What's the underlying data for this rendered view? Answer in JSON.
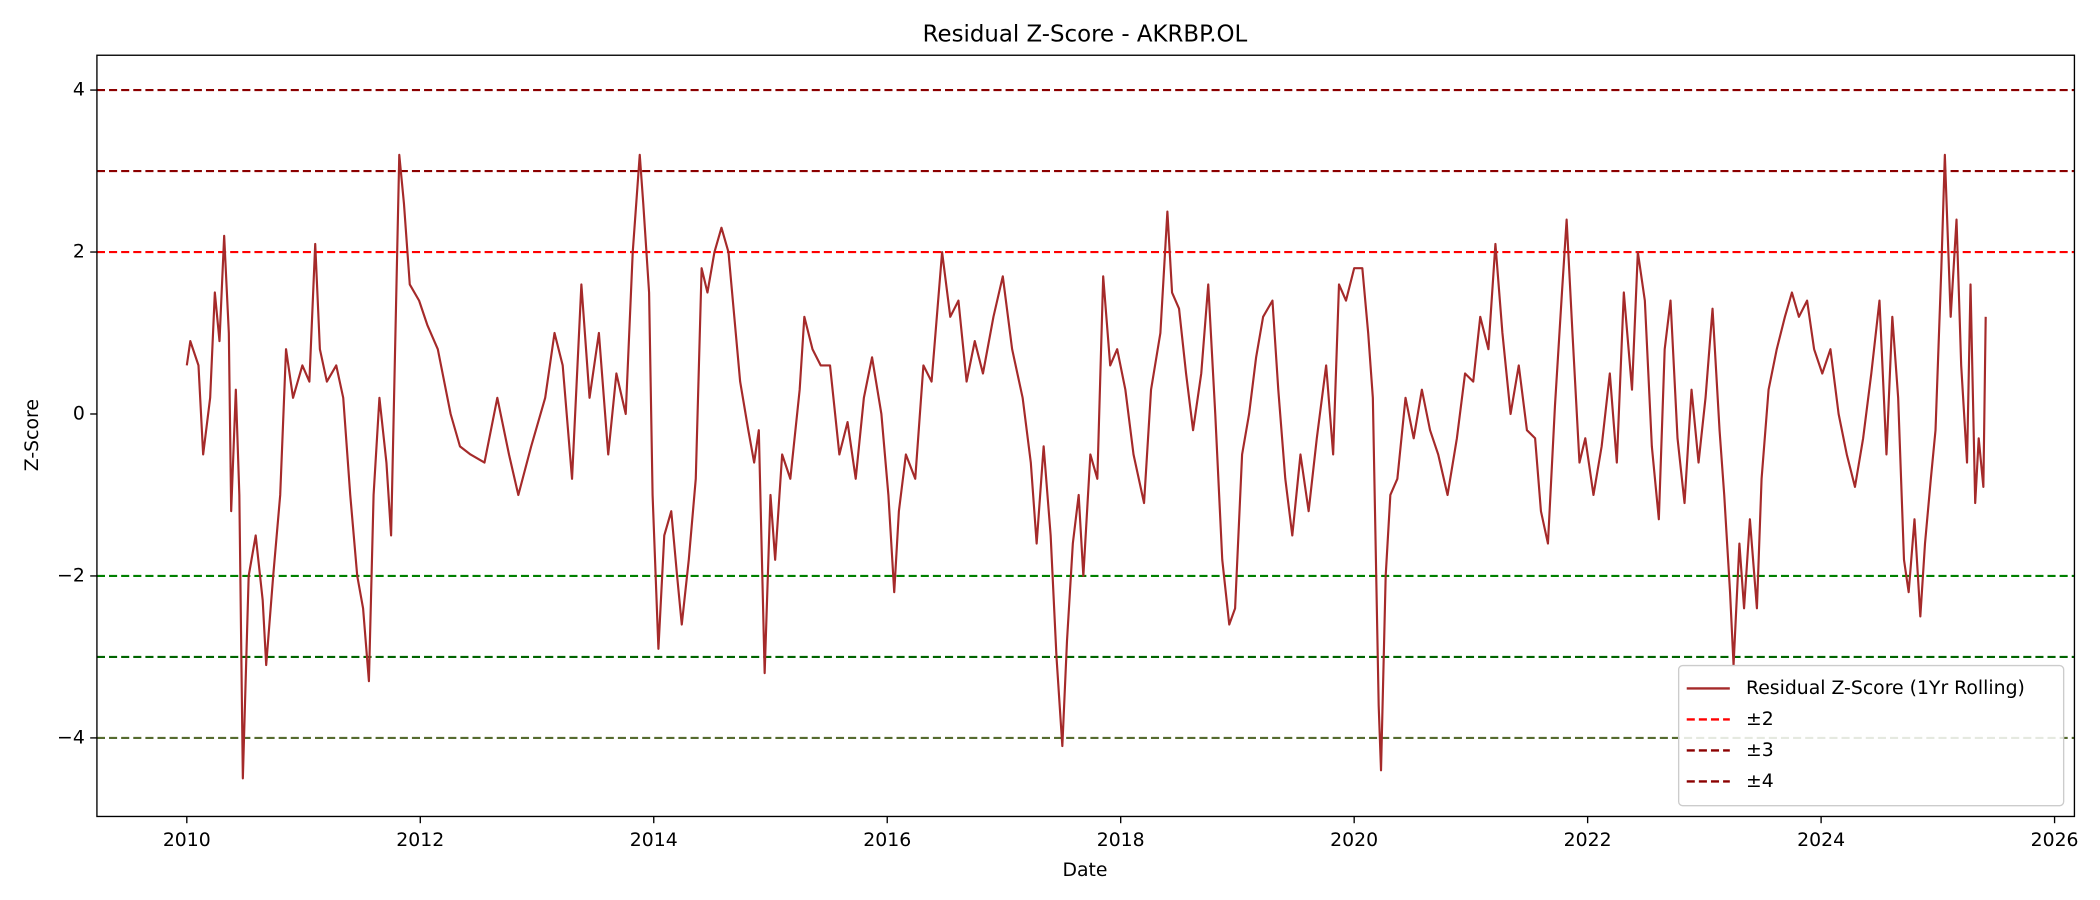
{
  "chart_data": {
    "type": "line",
    "title": "Residual Z-Score - AKRBP.OL",
    "x_label": "Date",
    "y_label": "Z-Score",
    "xlim": [
      2009.23,
      2026.17
    ],
    "xticks": [
      2010,
      2012,
      2014,
      2016,
      2018,
      2020,
      2022,
      2024,
      2026
    ],
    "ylim": [
      -4.97,
      4.43
    ],
    "yticks": [
      {
        "value": -4,
        "label": "−4"
      },
      {
        "value": -2,
        "label": "−2"
      },
      0,
      2,
      4
    ],
    "legend": "lower right",
    "grid": false,
    "x": [
      2010.0,
      2010.03,
      2010.1,
      2010.14,
      2010.2,
      2010.24,
      2010.28,
      2010.32,
      2010.36,
      2010.38,
      2010.42,
      2010.45,
      2010.48,
      2010.53,
      2010.59,
      2010.65,
      2010.68,
      2010.74,
      2010.8,
      2010.85,
      2010.91,
      2010.99,
      2011.05,
      2011.1,
      2011.14,
      2011.2,
      2011.28,
      2011.34,
      2011.4,
      2011.46,
      2011.51,
      2011.56,
      2011.6,
      2011.65,
      2011.71,
      2011.75,
      2011.82,
      2011.86,
      2011.91,
      2011.99,
      2012.06,
      2012.15,
      2012.26,
      2012.34,
      2012.43,
      2012.55,
      2012.66,
      2012.76,
      2012.84,
      2012.95,
      2013.07,
      2013.15,
      2013.22,
      2013.3,
      2013.38,
      2013.45,
      2013.53,
      2013.61,
      2013.68,
      2013.76,
      2013.82,
      2013.88,
      2013.91,
      2013.96,
      2013.99,
      2014.04,
      2014.09,
      2014.15,
      2014.2,
      2014.24,
      2014.3,
      2014.36,
      2014.41,
      2014.46,
      2014.52,
      2014.58,
      2014.64,
      2014.69,
      2014.74,
      2014.81,
      2014.86,
      2014.9,
      2014.95,
      2015.0,
      2015.04,
      2015.1,
      2015.17,
      2015.25,
      2015.29,
      2015.36,
      2015.43,
      2015.51,
      2015.59,
      2015.66,
      2015.73,
      2015.8,
      2015.87,
      2015.95,
      2016.01,
      2016.06,
      2016.1,
      2016.16,
      2016.24,
      2016.31,
      2016.38,
      2016.47,
      2016.54,
      2016.61,
      2016.68,
      2016.75,
      2016.82,
      2016.91,
      2016.99,
      2017.07,
      2017.16,
      2017.23,
      2017.28,
      2017.34,
      2017.4,
      2017.45,
      2017.5,
      2017.54,
      2017.59,
      2017.64,
      2017.68,
      2017.74,
      2017.8,
      2017.85,
      2017.91,
      2017.97,
      2018.04,
      2018.11,
      2018.2,
      2018.26,
      2018.34,
      2018.4,
      2018.44,
      2018.5,
      2018.56,
      2018.62,
      2018.69,
      2018.75,
      2018.81,
      2018.87,
      2018.93,
      2018.98,
      2019.04,
      2019.1,
      2019.16,
      2019.22,
      2019.3,
      2019.35,
      2019.41,
      2019.47,
      2019.54,
      2019.61,
      2019.68,
      2019.76,
      2019.82,
      2019.87,
      2019.93,
      2020.0,
      2020.07,
      2020.12,
      2020.16,
      2020.21,
      2020.23,
      2020.27,
      2020.31,
      2020.37,
      2020.44,
      2020.51,
      2020.58,
      2020.65,
      2020.72,
      2020.8,
      2020.88,
      2020.95,
      2021.02,
      2021.08,
      2021.15,
      2021.21,
      2021.27,
      2021.34,
      2021.41,
      2021.48,
      2021.55,
      2021.6,
      2021.66,
      2021.72,
      2021.78,
      2021.82,
      2021.87,
      2021.93,
      2021.98,
      2022.05,
      2022.12,
      2022.19,
      2022.25,
      2022.31,
      2022.38,
      2022.43,
      2022.49,
      2022.55,
      2022.61,
      2022.66,
      2022.71,
      2022.77,
      2022.83,
      2022.89,
      2022.95,
      2023.01,
      2023.07,
      2023.13,
      2023.17,
      2023.22,
      2023.25,
      2023.3,
      2023.34,
      2023.39,
      2023.45,
      2023.49,
      2023.55,
      2023.62,
      2023.69,
      2023.75,
      2023.81,
      2023.88,
      2023.94,
      2024.01,
      2024.08,
      2024.15,
      2024.22,
      2024.29,
      2024.36,
      2024.43,
      2024.5,
      2024.56,
      2024.61,
      2024.66,
      2024.71,
      2024.75,
      2024.8,
      2024.85,
      2024.89,
      2024.94,
      2024.98,
      2025.03,
      2025.06,
      2025.11,
      2025.16,
      2025.2,
      2025.25,
      2025.28,
      2025.32,
      2025.35,
      2025.39,
      2025.41
    ],
    "series": [
      {
        "name": "Residual Z-Score (1Yr Rolling)",
        "color": "#a52a2a",
        "values": [
          0.6,
          0.9,
          0.6,
          -0.5,
          0.2,
          1.5,
          0.9,
          2.2,
          1.0,
          -1.2,
          0.3,
          -1.0,
          -4.5,
          -2.0,
          -1.5,
          -2.3,
          -3.1,
          -2.0,
          -1.0,
          0.8,
          0.2,
          0.6,
          0.4,
          2.1,
          0.8,
          0.4,
          0.6,
          0.2,
          -1.0,
          -2.0,
          -2.4,
          -3.3,
          -1.0,
          0.2,
          -0.6,
          -1.5,
          3.2,
          2.6,
          1.6,
          1.4,
          1.1,
          0.8,
          0.0,
          -0.4,
          -0.5,
          -0.6,
          0.2,
          -0.5,
          -1.0,
          -0.4,
          0.2,
          1.0,
          0.6,
          -0.8,
          1.6,
          0.2,
          1.0,
          -0.5,
          0.5,
          0.0,
          2.0,
          3.2,
          2.6,
          1.5,
          -1.0,
          -2.9,
          -1.5,
          -1.2,
          -2.0,
          -2.6,
          -1.8,
          -0.8,
          1.8,
          1.5,
          2.0,
          2.3,
          2.0,
          1.2,
          0.4,
          -0.2,
          -0.6,
          -0.2,
          -3.2,
          -1.0,
          -1.8,
          -0.5,
          -0.8,
          0.3,
          1.2,
          0.8,
          0.6,
          0.6,
          -0.5,
          -0.1,
          -0.8,
          0.2,
          0.7,
          0.0,
          -1.0,
          -2.2,
          -1.2,
          -0.5,
          -0.8,
          0.6,
          0.4,
          2.0,
          1.2,
          1.4,
          0.4,
          0.9,
          0.5,
          1.2,
          1.7,
          0.8,
          0.2,
          -0.6,
          -1.6,
          -0.4,
          -1.5,
          -3.0,
          -4.1,
          -2.8,
          -1.6,
          -1.0,
          -2.0,
          -0.5,
          -0.8,
          1.7,
          0.6,
          0.8,
          0.3,
          -0.5,
          -1.1,
          0.3,
          1.0,
          2.5,
          1.5,
          1.3,
          0.5,
          -0.2,
          0.5,
          1.6,
          0.0,
          -1.8,
          -2.6,
          -2.4,
          -0.5,
          0.0,
          0.7,
          1.2,
          1.4,
          0.3,
          -0.8,
          -1.5,
          -0.5,
          -1.2,
          -0.3,
          0.6,
          -0.5,
          1.6,
          1.4,
          1.8,
          1.8,
          1.0,
          0.2,
          -3.6,
          -4.4,
          -2.0,
          -1.0,
          -0.8,
          0.2,
          -0.3,
          0.3,
          -0.2,
          -0.5,
          -1.0,
          -0.3,
          0.5,
          0.4,
          1.2,
          0.8,
          2.1,
          1.0,
          0.0,
          0.6,
          -0.2,
          -0.3,
          -1.2,
          -1.6,
          0.1,
          1.5,
          2.4,
          1.0,
          -0.6,
          -0.3,
          -1.0,
          -0.4,
          0.5,
          -0.6,
          1.5,
          0.3,
          2.0,
          1.4,
          -0.4,
          -1.3,
          0.8,
          1.4,
          -0.3,
          -1.1,
          0.3,
          -0.6,
          0.2,
          1.3,
          -0.2,
          -1.0,
          -2.2,
          -3.1,
          -1.6,
          -2.4,
          -1.3,
          -2.4,
          -0.8,
          0.3,
          0.8,
          1.2,
          1.5,
          1.2,
          1.4,
          0.8,
          0.5,
          0.8,
          0.0,
          -0.5,
          -0.9,
          -0.3,
          0.5,
          1.4,
          -0.5,
          1.2,
          0.2,
          -1.8,
          -2.2,
          -1.3,
          -2.5,
          -1.6,
          -0.8,
          -0.2,
          1.8,
          3.2,
          1.2,
          2.4,
          0.6,
          -0.6,
          1.6,
          -1.1,
          -0.3,
          -0.9,
          1.2
        ]
      }
    ],
    "reference_lines": [
      {
        "name": "±2",
        "values": [
          2,
          -2
        ],
        "colors": [
          "red",
          "green"
        ]
      },
      {
        "name": "±3",
        "values": [
          3,
          -3
        ],
        "colors": [
          "darkred",
          "darkgreen"
        ]
      },
      {
        "name": "±4",
        "values": [
          4,
          -4
        ],
        "colors": [
          "darkred",
          "darkolivegreen"
        ]
      }
    ]
  }
}
